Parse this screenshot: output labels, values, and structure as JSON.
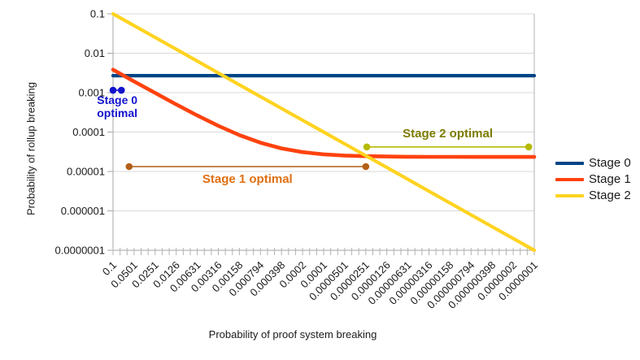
{
  "chart_data": {
    "type": "line",
    "title": "",
    "x_axis": {
      "title": "Probability of proof system breaking",
      "scale": "log",
      "range_left": 0.1,
      "range_right": 1e-07,
      "tick_labels": [
        "0.1",
        "0.0501",
        "0.0251",
        "0.0126",
        "0.00631",
        "0.00316",
        "0.00158",
        "0.000794",
        "0.000398",
        "0.0002",
        "0.0001",
        "0.0000501",
        "0.0000251",
        "0.0000126",
        "0.00000631",
        "0.00000316",
        "0.00000158",
        "0.000000794",
        "0.000000398",
        "0.0000002",
        "0.0000001"
      ]
    },
    "y_axis": {
      "title": "Probability of rollup breaking",
      "scale": "log",
      "range_top": 0.1,
      "range_bottom": 1e-07,
      "tick_labels": [
        "0.1",
        "0.01",
        "0.001",
        "0.0001",
        "0.00001",
        "0.000001",
        "0.0000001"
      ]
    },
    "grid": "horizontal",
    "x": [
      0.1,
      0.0501,
      0.0251,
      0.0126,
      0.00631,
      0.00316,
      0.00158,
      0.000794,
      0.000398,
      0.0002,
      0.0001,
      5.01e-05,
      2.51e-05,
      1.26e-05,
      6.31e-06,
      3.16e-06,
      1.58e-06,
      7.94e-07,
      3.98e-07,
      2e-07,
      1e-07
    ],
    "series": [
      {
        "name": "Stage 0",
        "color": "#004586",
        "values": [
          0.0027,
          0.0027,
          0.0027,
          0.0027,
          0.0027,
          0.0027,
          0.0027,
          0.0027,
          0.0027,
          0.0027,
          0.0027,
          0.0027,
          0.0027,
          0.0027,
          0.0027,
          0.0027,
          0.0027,
          0.0027,
          0.0027,
          0.0027,
          0.0027
        ]
      },
      {
        "name": "Stage 1",
        "color": "#ff420e",
        "values": [
          0.00383,
          0.00193,
          0.00098,
          0.000503,
          0.000264,
          0.000144,
          8.36e-05,
          5.37e-05,
          3.86e-05,
          3.1e-05,
          2.72e-05,
          2.53e-05,
          2.44e-05,
          2.39e-05,
          2.36e-05,
          2.35e-05,
          2.35e-05,
          2.34e-05,
          2.34e-05,
          2.34e-05,
          2.34e-05
        ]
      },
      {
        "name": "Stage 2",
        "color": "#ffd320",
        "values": [
          0.1,
          0.0501,
          0.0251,
          0.0126,
          0.00631,
          0.00316,
          0.00158,
          0.000794,
          0.000398,
          0.0002,
          0.0001,
          5.01e-05,
          2.51e-05,
          1.26e-05,
          6.31e-06,
          3.16e-06,
          1.58e-06,
          7.94e-07,
          3.98e-07,
          2e-07,
          1e-07
        ]
      }
    ],
    "legend": {
      "position": "right"
    },
    "annotations": [
      {
        "label": "Stage 0 optimal",
        "text_color": "#1212cd",
        "line_color": "#1212cd",
        "x_start": 0.1,
        "x_end": 0.076,
        "y": 0.00115,
        "label_side": "below"
      },
      {
        "label": "Stage 1 optimal",
        "text_color": "#e06f12",
        "line_color": "#b45f17",
        "x_start": 0.059,
        "x_end": 2.51e-05,
        "y": 1.33e-05,
        "label_side": "below"
      },
      {
        "label": "Stage 2 optimal",
        "text_color": "#7c7c00",
        "line_color": "#b5ba00",
        "x_start": 2.43e-05,
        "x_end": 1.2e-07,
        "y": 4.2e-05,
        "label_side": "above"
      }
    ]
  }
}
